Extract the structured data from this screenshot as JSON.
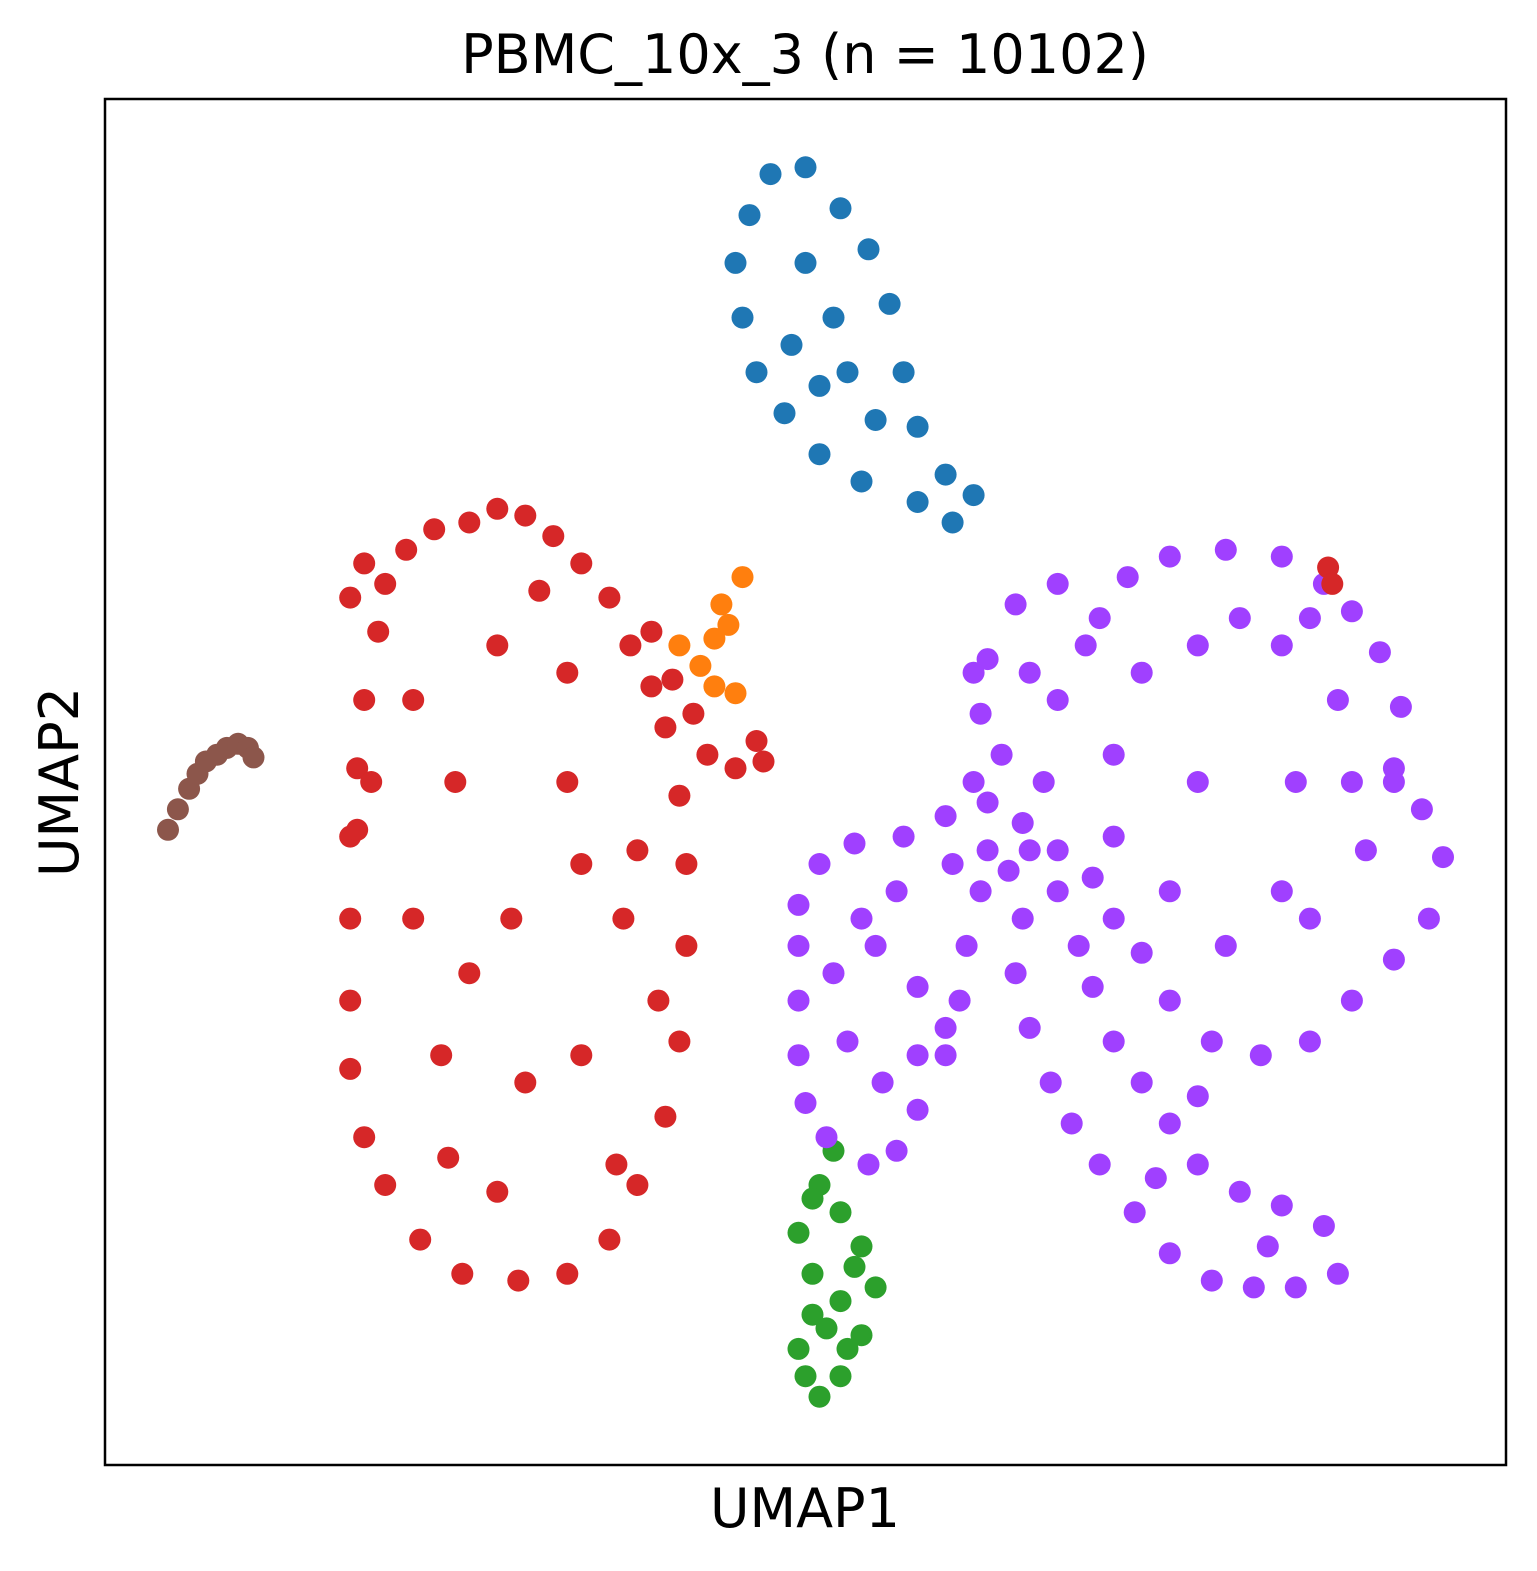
{
  "chart_data": {
    "type": "scatter",
    "title": "PBMC_10x_3 (n = 10102)",
    "xlabel": "UMAP1",
    "ylabel": "UMAP2",
    "xticks": [],
    "yticks": [],
    "xlim": [
      0,
      100
    ],
    "ylim": [
      0,
      100
    ],
    "grid": false,
    "legend": "none",
    "colors": [
      "#1f77b4",
      "#ff7f0e",
      "#2ca02c",
      "#d62728",
      "#a040ff",
      "#8c564b"
    ],
    "series": [
      {
        "color": "#1f77b4",
        "points": [
          [
            47.5,
            94.5
          ],
          [
            50,
            95
          ],
          [
            52.5,
            92
          ],
          [
            54.5,
            89
          ],
          [
            56,
            85
          ],
          [
            57,
            80
          ],
          [
            58,
            76
          ],
          [
            60,
            72.5
          ],
          [
            62,
            71
          ],
          [
            60.5,
            69
          ],
          [
            58,
            70.5
          ],
          [
            54,
            72
          ],
          [
            51,
            74
          ],
          [
            48.5,
            77
          ],
          [
            46.5,
            80
          ],
          [
            45.5,
            84
          ],
          [
            45,
            88
          ],
          [
            46,
            91.5
          ],
          [
            50,
            88
          ],
          [
            52,
            84
          ],
          [
            53,
            80
          ],
          [
            55,
            76.5
          ],
          [
            49,
            82
          ],
          [
            51,
            79
          ]
        ]
      },
      {
        "color": "#ff7f0e",
        "points": [
          [
            45.5,
            65
          ],
          [
            44,
            63
          ],
          [
            43.5,
            60.5
          ],
          [
            42.5,
            58.5
          ],
          [
            43.5,
            57
          ],
          [
            45,
            56.5
          ],
          [
            41,
            60
          ],
          [
            44.5,
            61.5
          ]
        ]
      },
      {
        "color": "#2ca02c",
        "points": [
          [
            52,
            23
          ],
          [
            51,
            20.5
          ],
          [
            52.5,
            18.5
          ],
          [
            54,
            16
          ],
          [
            55,
            13
          ],
          [
            54,
            9.5
          ],
          [
            52.5,
            6.5
          ],
          [
            51,
            5
          ],
          [
            50,
            6.5
          ],
          [
            49.5,
            8.5
          ],
          [
            50.5,
            11
          ],
          [
            50.5,
            14
          ],
          [
            49.5,
            17
          ],
          [
            50.5,
            19.5
          ],
          [
            52.5,
            12
          ],
          [
            53.5,
            14.5
          ],
          [
            53,
            8.5
          ],
          [
            51.5,
            10
          ]
        ]
      },
      {
        "color": "#d62728",
        "points": [
          [
            26,
            69
          ],
          [
            28,
            70
          ],
          [
            30,
            69.5
          ],
          [
            32,
            68
          ],
          [
            34,
            66
          ],
          [
            36,
            63.5
          ],
          [
            37.5,
            60
          ],
          [
            39,
            57
          ],
          [
            40,
            54
          ],
          [
            41,
            49
          ],
          [
            41.5,
            44
          ],
          [
            41.5,
            38
          ],
          [
            41,
            31
          ],
          [
            40,
            25.5
          ],
          [
            38,
            20.5
          ],
          [
            36,
            16.5
          ],
          [
            33,
            14
          ],
          [
            29.5,
            13.5
          ],
          [
            25.5,
            14
          ],
          [
            22.5,
            16.5
          ],
          [
            20,
            20.5
          ],
          [
            18.5,
            24
          ],
          [
            17.5,
            29
          ],
          [
            17.5,
            34
          ],
          [
            17.5,
            40
          ],
          [
            17.5,
            46
          ],
          [
            18,
            51
          ],
          [
            18.5,
            56
          ],
          [
            19.5,
            61
          ],
          [
            20,
            64.5
          ],
          [
            18.5,
            66
          ],
          [
            17.5,
            63.5
          ],
          [
            21.5,
            67
          ],
          [
            23.5,
            68.5
          ],
          [
            29,
            40
          ],
          [
            25,
            50
          ],
          [
            33,
            50
          ],
          [
            24,
            30
          ],
          [
            34,
            30
          ],
          [
            28,
            20
          ],
          [
            28,
            60
          ],
          [
            33,
            58
          ],
          [
            22,
            40
          ],
          [
            37,
            40
          ],
          [
            30,
            28
          ],
          [
            26,
            36
          ],
          [
            34,
            44
          ],
          [
            22,
            56
          ],
          [
            31,
            64
          ],
          [
            38,
            45
          ],
          [
            43,
            52
          ],
          [
            45,
            51
          ],
          [
            47,
            51.5
          ],
          [
            46.5,
            53
          ],
          [
            42,
            55
          ],
          [
            40.5,
            57.5
          ],
          [
            39,
            61
          ],
          [
            19,
            50
          ],
          [
            18,
            46.5
          ],
          [
            24.5,
            22.5
          ],
          [
            36.5,
            22
          ],
          [
            39.5,
            34
          ]
        ]
      },
      {
        "color": "#a040ff",
        "points": [
          [
            71,
            62
          ],
          [
            73,
            65
          ],
          [
            76,
            66.5
          ],
          [
            80,
            67
          ],
          [
            84,
            66.5
          ],
          [
            87,
            64.5
          ],
          [
            89,
            62.5
          ],
          [
            91,
            59.5
          ],
          [
            92.5,
            55.5
          ],
          [
            92,
            51
          ],
          [
            94,
            48
          ],
          [
            95.5,
            44.5
          ],
          [
            94.5,
            40
          ],
          [
            92,
            37
          ],
          [
            89,
            34
          ],
          [
            86,
            31
          ],
          [
            82.5,
            30
          ],
          [
            79,
            31
          ],
          [
            76,
            34
          ],
          [
            74,
            37.5
          ],
          [
            72,
            40
          ],
          [
            70.5,
            43
          ],
          [
            68,
            45
          ],
          [
            65.5,
            47
          ],
          [
            63,
            48.5
          ],
          [
            60,
            47.5
          ],
          [
            57,
            46
          ],
          [
            53.5,
            45.5
          ],
          [
            51,
            44
          ],
          [
            49.5,
            41
          ],
          [
            49.5,
            38
          ],
          [
            49.5,
            34
          ],
          [
            49.5,
            30
          ],
          [
            50,
            26.5
          ],
          [
            51.5,
            24
          ],
          [
            54.5,
            22
          ],
          [
            56.5,
            23
          ],
          [
            58,
            26
          ],
          [
            60,
            30
          ],
          [
            61,
            34
          ],
          [
            61.5,
            38
          ],
          [
            62.5,
            42
          ],
          [
            64.5,
            43.5
          ],
          [
            65.5,
            40
          ],
          [
            65,
            36
          ],
          [
            66,
            32
          ],
          [
            67.5,
            28
          ],
          [
            69,
            25
          ],
          [
            71,
            22
          ],
          [
            73.5,
            18.5
          ],
          [
            76,
            15.5
          ],
          [
            79,
            13.5
          ],
          [
            82,
            13
          ],
          [
            85,
            13
          ],
          [
            88,
            14
          ],
          [
            87,
            17.5
          ],
          [
            84,
            19
          ],
          [
            81,
            20
          ],
          [
            78,
            22
          ],
          [
            76,
            25
          ],
          [
            74,
            28
          ],
          [
            72,
            31
          ],
          [
            70.5,
            35
          ],
          [
            69.5,
            38
          ],
          [
            68,
            42
          ],
          [
            66,
            45
          ],
          [
            63,
            45
          ],
          [
            60.5,
            44
          ],
          [
            56.5,
            42
          ],
          [
            54,
            40
          ],
          [
            52,
            36
          ],
          [
            53,
            31
          ],
          [
            55.5,
            28
          ],
          [
            58,
            30
          ],
          [
            62.5,
            55
          ],
          [
            63,
            59
          ],
          [
            65,
            63
          ],
          [
            68,
            64.5
          ],
          [
            78,
            60
          ],
          [
            84,
            60
          ],
          [
            88,
            56
          ],
          [
            85,
            50
          ],
          [
            78,
            50
          ],
          [
            72,
            52
          ],
          [
            68,
            56
          ],
          [
            90,
            45
          ],
          [
            86,
            40
          ],
          [
            80,
            38
          ],
          [
            76,
            42
          ],
          [
            72,
            46
          ],
          [
            67,
            50
          ],
          [
            64,
            52
          ],
          [
            78,
            27
          ],
          [
            75,
            21
          ],
          [
            83,
            16
          ],
          [
            81,
            62
          ],
          [
            86,
            62
          ],
          [
            92,
            50
          ],
          [
            58,
            35
          ],
          [
            62,
            50
          ],
          [
            60,
            32
          ],
          [
            55,
            38
          ],
          [
            89,
            50
          ],
          [
            84,
            42
          ],
          [
            74,
            58
          ],
          [
            70,
            60
          ],
          [
            66,
            58
          ],
          [
            62,
            58
          ]
        ]
      },
      {
        "color": "#d62728",
        "points": [
          [
            87.3,
            65.7
          ],
          [
            87.6,
            64.5
          ]
        ]
      },
      {
        "color": "#8c564b",
        "points": [
          [
            4.5,
            46.5
          ],
          [
            5.2,
            48
          ],
          [
            6,
            49.5
          ],
          [
            6.6,
            50.6
          ],
          [
            7.2,
            51.5
          ],
          [
            8,
            52
          ],
          [
            8.7,
            52.5
          ],
          [
            9.5,
            52.8
          ],
          [
            10.2,
            52.5
          ],
          [
            10.6,
            51.8
          ]
        ]
      }
    ]
  }
}
